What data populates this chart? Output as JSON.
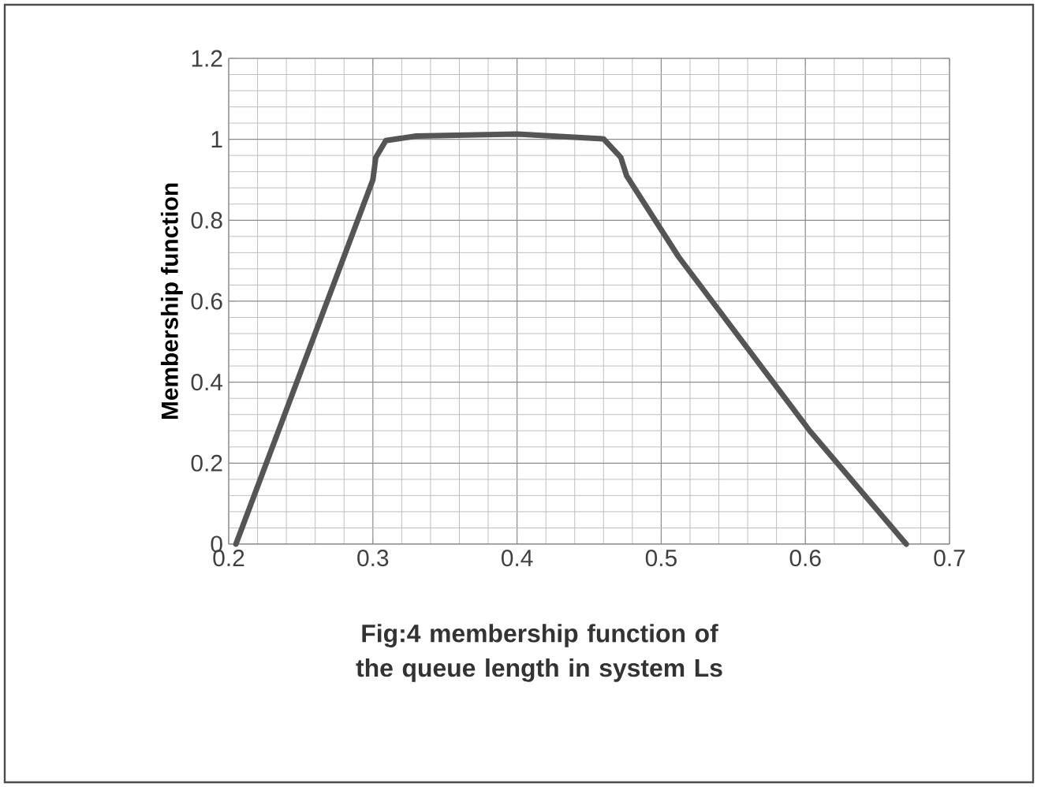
{
  "chart_data": {
    "type": "line",
    "ylabel": "Membership function",
    "annotations": [
      "Fig:4 membership function of the  queue length in system Ls"
    ],
    "x": [
      0.205,
      0.3,
      0.302,
      0.309,
      0.33,
      0.4,
      0.46,
      0.472,
      0.476,
      0.512,
      0.603,
      0.67
    ],
    "series": [
      {
        "color": "#555555",
        "values": [
          0,
          0.9,
          0.955,
          0.997,
          1.008,
          1.013,
          1.001,
          0.955,
          0.91,
          0.71,
          0.28,
          0
        ]
      }
    ],
    "xlim": [
      0.2,
      0.7
    ],
    "ylim": [
      0,
      1.2
    ],
    "xticks": [
      {
        "value": 0.2,
        "label": "0.2"
      },
      {
        "value": 0.3,
        "label": "0.3"
      },
      {
        "value": 0.4,
        "label": "0.4"
      },
      {
        "value": 0.5,
        "label": "0.5"
      },
      {
        "value": 0.6,
        "label": "0.6"
      },
      {
        "value": 0.7,
        "label": "0.7"
      }
    ],
    "yticks": [
      0,
      {
        "value": 0.2,
        "label": "0.2"
      },
      {
        "value": 0.4,
        "label": "0.4"
      },
      {
        "value": 0.6,
        "label": "0.6"
      },
      {
        "value": 0.8,
        "label": "0.8"
      },
      1,
      {
        "value": 1.2,
        "label": "1.2"
      }
    ],
    "grid": true,
    "marker": "none",
    "line_style": "solid"
  }
}
